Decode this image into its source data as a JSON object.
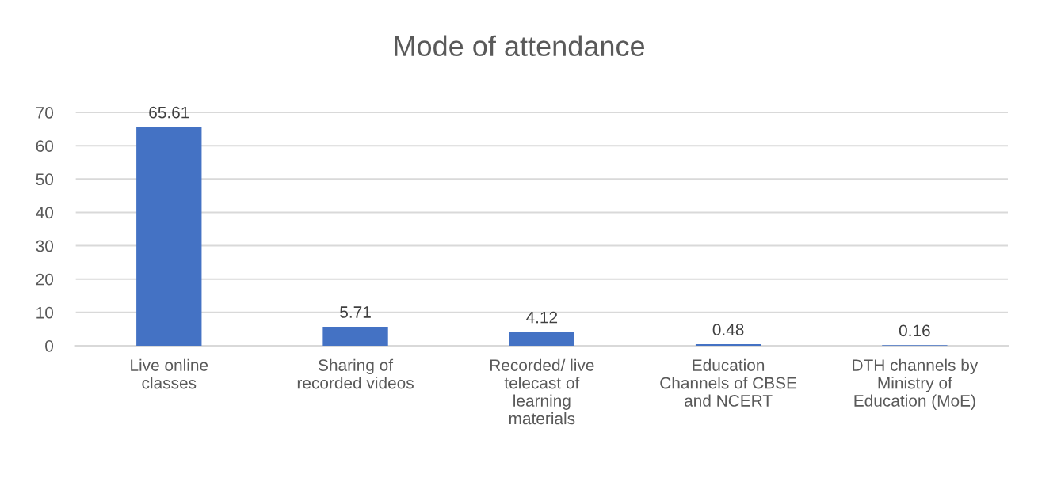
{
  "chart_data": {
    "type": "bar",
    "title": "Mode of attendance",
    "categories": [
      "Live online\nclasses",
      "Sharing of\nrecorded videos",
      "Recorded/ live\ntelecast of\nlearning\nmaterials",
      "Education\nChannels of CBSE\nand NCERT",
      "DTH channels by\nMinistry of\nEducation (MoE)"
    ],
    "values": [
      65.61,
      5.71,
      4.12,
      0.48,
      0.16
    ],
    "color": "#4472c4",
    "ylim": [
      0,
      70
    ],
    "yticks": [
      0,
      10,
      20,
      30,
      40,
      50,
      60,
      70
    ],
    "grid": "y",
    "data_labels": true
  }
}
